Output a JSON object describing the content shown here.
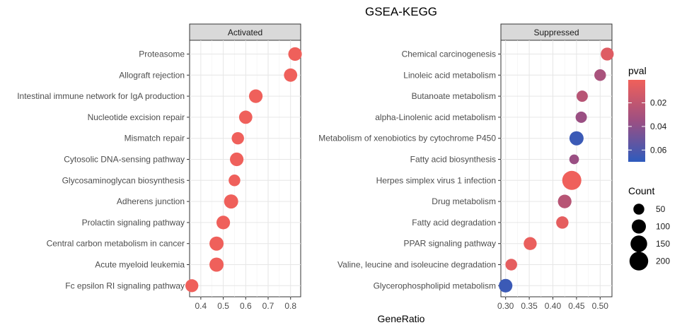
{
  "chart_data": {
    "type": "scatter",
    "title": "GSEA-KEGG",
    "xlabel": "GeneRatio",
    "colors": {
      "low_pval": "#f0605a",
      "high_pval": "#2e5bbd"
    },
    "panels": [
      {
        "name": "Activated",
        "xlim": [
          0.35,
          0.845
        ],
        "xticks": [
          0.4,
          0.5,
          0.6,
          0.7,
          0.8
        ],
        "xtick_labels": [
          "0.4",
          "0.5",
          "0.6",
          "0.7",
          "0.8"
        ],
        "points": [
          {
            "term": "Proteasome",
            "x": 0.82,
            "pval": 0.001,
            "count": 90
          },
          {
            "term": "Allograft rejection",
            "x": 0.8,
            "pval": 0.001,
            "count": 85
          },
          {
            "term": "Intestinal immune network for IgA production",
            "x": 0.645,
            "pval": 0.001,
            "count": 90
          },
          {
            "term": "Nucleotide excision repair",
            "x": 0.6,
            "pval": 0.001,
            "count": 85
          },
          {
            "term": "Mismatch repair",
            "x": 0.565,
            "pval": 0.001,
            "count": 70
          },
          {
            "term": "Cytosolic DNA-sensing pathway",
            "x": 0.56,
            "pval": 0.001,
            "count": 90
          },
          {
            "term": "Glycosaminoglycan biosynthesis",
            "x": 0.55,
            "pval": 0.001,
            "count": 60
          },
          {
            "term": "Adherens junction",
            "x": 0.535,
            "pval": 0.001,
            "count": 100
          },
          {
            "term": "Prolactin signaling pathway",
            "x": 0.5,
            "pval": 0.001,
            "count": 90
          },
          {
            "term": "Central carbon metabolism in cancer",
            "x": 0.47,
            "pval": 0.001,
            "count": 100
          },
          {
            "term": "Acute myeloid leukemia",
            "x": 0.47,
            "pval": 0.001,
            "count": 100
          },
          {
            "term": "Fc epsilon RI signaling pathway",
            "x": 0.36,
            "pval": 0.001,
            "count": 80
          }
        ]
      },
      {
        "name": "Suppressed",
        "xlim": [
          0.29,
          0.525
        ],
        "xticks": [
          0.3,
          0.35,
          0.4,
          0.45,
          0.5
        ],
        "xtick_labels": [
          "0.30",
          "0.35",
          "0.40",
          "0.45",
          "0.50"
        ],
        "points": [
          {
            "term": "Chemical carcinogenesis",
            "x": 0.515,
            "pval": 0.008,
            "count": 80
          },
          {
            "term": "Linoleic acid metabolism",
            "x": 0.5,
            "pval": 0.03,
            "count": 60
          },
          {
            "term": "Butanoate metabolism",
            "x": 0.462,
            "pval": 0.024,
            "count": 55
          },
          {
            "term": "alpha-Linolenic acid metabolism",
            "x": 0.46,
            "pval": 0.036,
            "count": 55
          },
          {
            "term": "Metabolism of xenobiotics by cytochrome P450",
            "x": 0.45,
            "pval": 0.066,
            "count": 100
          },
          {
            "term": "Fatty acid biosynthesis",
            "x": 0.445,
            "pval": 0.036,
            "count": 35
          },
          {
            "term": "Herpes simplex virus 1 infection",
            "x": 0.44,
            "pval": 0.001,
            "count": 210
          },
          {
            "term": "Drug metabolism",
            "x": 0.425,
            "pval": 0.024,
            "count": 90
          },
          {
            "term": "Fatty acid degradation",
            "x": 0.42,
            "pval": 0.005,
            "count": 70
          },
          {
            "term": "PPAR signaling pathway",
            "x": 0.352,
            "pval": 0.003,
            "count": 80
          },
          {
            "term": "Valine, leucine and isoleucine degradation",
            "x": 0.312,
            "pval": 0.005,
            "count": 60
          },
          {
            "term": "Glycerophospholipid metabolism",
            "x": 0.3,
            "pval": 0.066,
            "count": 90
          }
        ]
      }
    ],
    "legend_pval": {
      "title": "pval",
      "range": [
        0.0005,
        0.07
      ],
      "ticks": [
        0.02,
        0.04,
        0.06
      ],
      "tick_labels": [
        "0.02",
        "0.04",
        "0.06"
      ]
    },
    "legend_count": {
      "title": "Count",
      "values": [
        50,
        100,
        150,
        200
      ],
      "labels": [
        "50",
        "100",
        "150",
        "200"
      ]
    }
  }
}
